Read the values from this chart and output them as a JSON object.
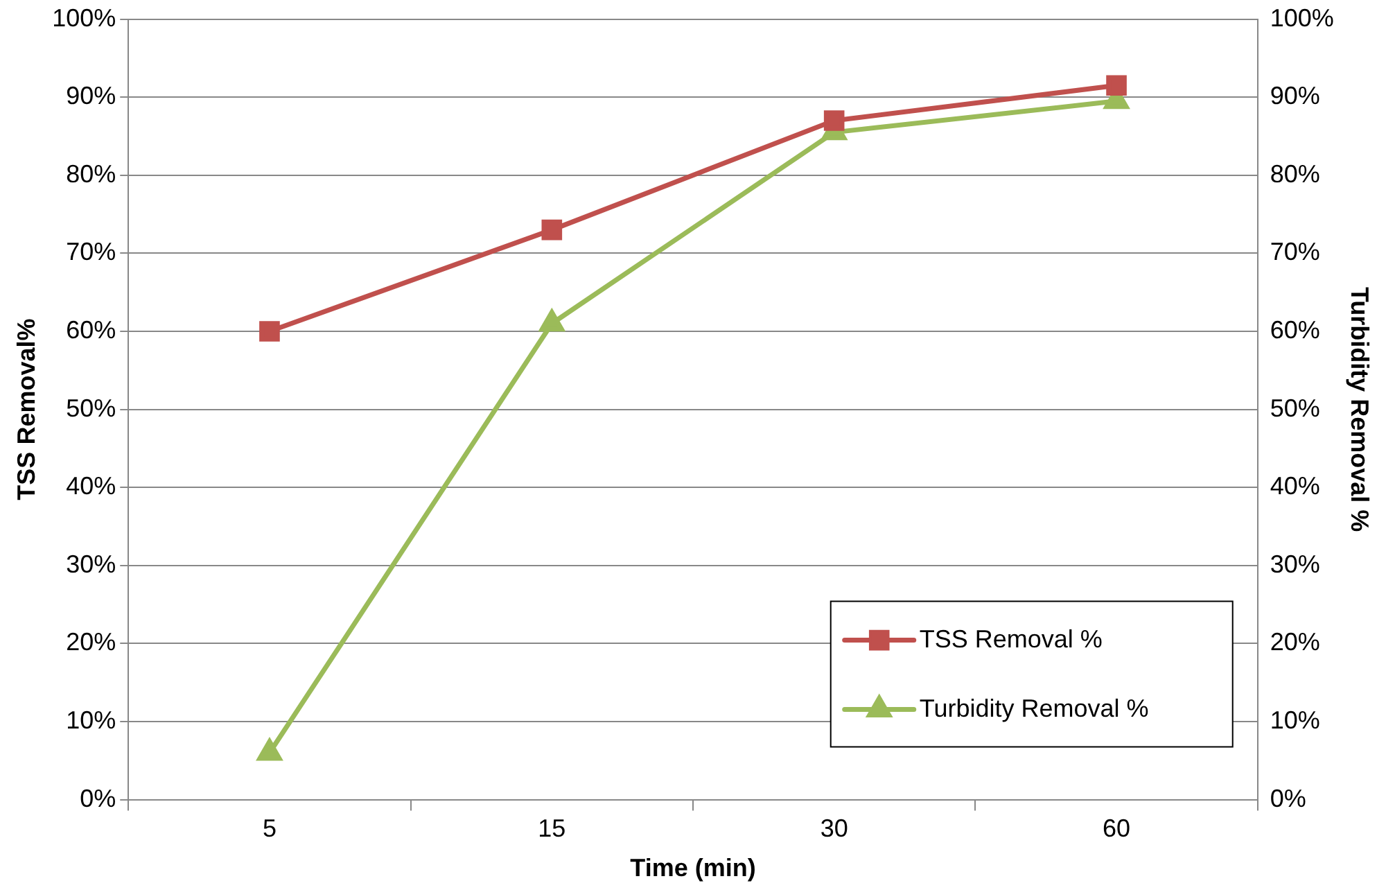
{
  "chart_data": {
    "type": "line",
    "xlabel": "Time (min)",
    "ylabel": "TSS Removal%",
    "y2label": "Turbidity Removal %",
    "categories": [
      "5",
      "15",
      "30",
      "60"
    ],
    "series": [
      {
        "name": "TSS Removal %",
        "color": "#c0504d",
        "marker": "square",
        "values": [
          60,
          73,
          87,
          91.5
        ]
      },
      {
        "name": "Turbidity Removal %",
        "color": "#9bbb59",
        "marker": "triangle",
        "values": [
          6,
          61,
          85.5,
          89.5
        ]
      }
    ],
    "ylim": [
      0,
      100
    ],
    "yticks": [
      {
        "value": 0,
        "label": "0%"
      },
      {
        "value": 10,
        "label": "10%"
      },
      {
        "value": 20,
        "label": "20%"
      },
      {
        "value": 30,
        "label": "30%"
      },
      {
        "value": 40,
        "label": "40%"
      },
      {
        "value": 50,
        "label": "50%"
      },
      {
        "value": 60,
        "label": "60%"
      },
      {
        "value": 70,
        "label": "70%"
      },
      {
        "value": 80,
        "label": "80%"
      },
      {
        "value": 90,
        "label": "90%"
      },
      {
        "value": 100,
        "label": "100%"
      }
    ],
    "y2lim": [
      0,
      100
    ],
    "y2ticks": [
      {
        "value": 0,
        "label": "0%"
      },
      {
        "value": 10,
        "label": "10%"
      },
      {
        "value": 20,
        "label": "20%"
      },
      {
        "value": 30,
        "label": "30%"
      },
      {
        "value": 40,
        "label": "40%"
      },
      {
        "value": 50,
        "label": "50%"
      },
      {
        "value": 60,
        "label": "60%"
      },
      {
        "value": 70,
        "label": "70%"
      },
      {
        "value": 80,
        "label": "80%"
      },
      {
        "value": 90,
        "label": "90%"
      },
      {
        "value": 100,
        "label": "100%"
      }
    ],
    "grid": "y",
    "legend": "bottom right"
  }
}
